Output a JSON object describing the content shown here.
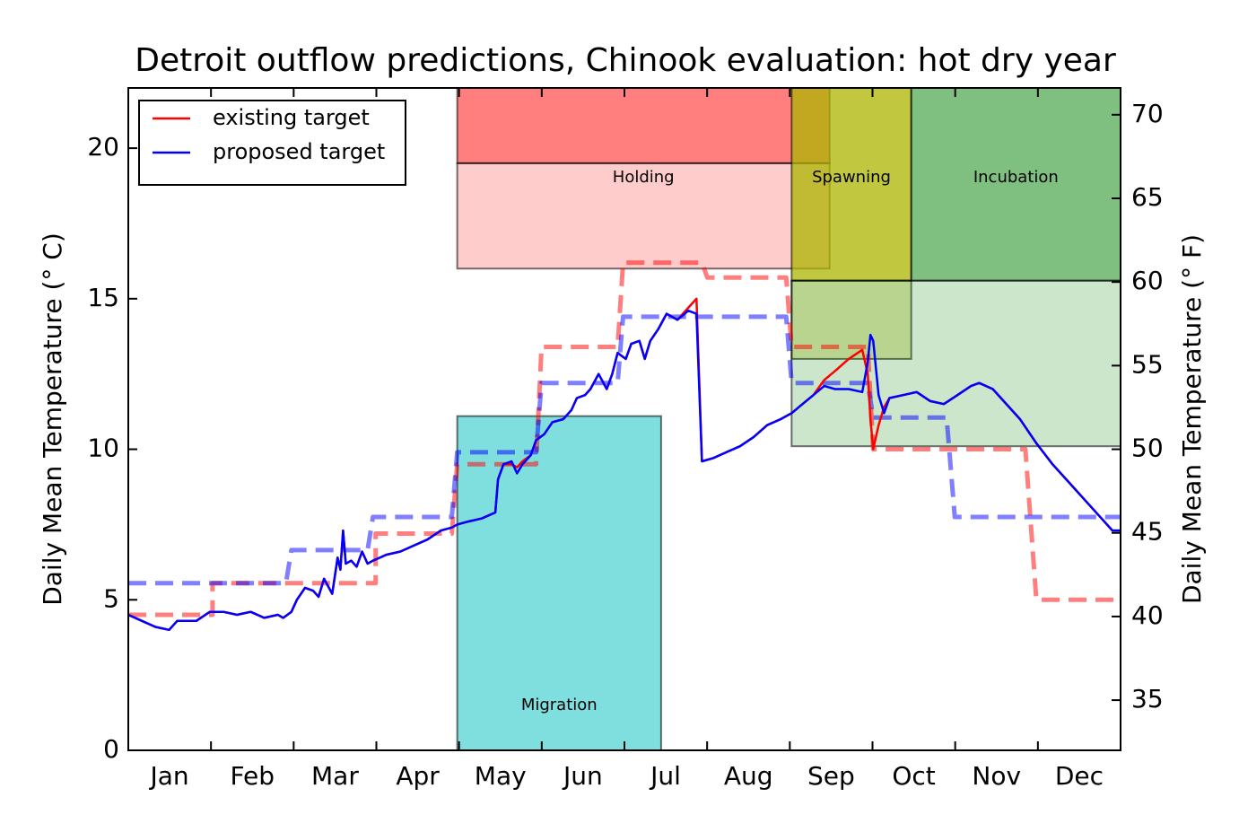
{
  "chart_data": {
    "type": "line",
    "title": "Detroit outflow predictions, Chinook evaluation: hot dry year",
    "ylabel": "Daily Mean Temperature (° C)",
    "y2label": "Daily Mean Temperature (° F)",
    "categories": [
      "Jan",
      "Feb",
      "Mar",
      "Apr",
      "May",
      "Jun",
      "Jul",
      "Aug",
      "Sep",
      "Oct",
      "Nov",
      "Dec"
    ],
    "xlim": [
      0,
      365
    ],
    "ylim": [
      0,
      22
    ],
    "yticks": [
      0,
      5,
      10,
      15,
      20
    ],
    "y2lim": [
      32,
      71.6
    ],
    "y2ticks": [
      35,
      40,
      45,
      50,
      55,
      60,
      65,
      70
    ],
    "legend": "upper left",
    "zones": [
      {
        "label": "Migration",
        "color": "#00c0c0",
        "rects": [
          {
            "x": [
              121,
              196
            ],
            "y": [
              0,
              11.1
            ],
            "opacity": 0.5
          }
        ]
      },
      {
        "label": "Holding",
        "color": "#ff0000",
        "rects": [
          {
            "x": [
              121,
              258
            ],
            "y": [
              19.5,
              22
            ],
            "opacity": 0.5
          },
          {
            "x": [
              121,
              258
            ],
            "y": [
              16,
              19.5
            ],
            "opacity": 0.2
          }
        ]
      },
      {
        "label": "Spawning",
        "color": "#acb500",
        "rects": [
          {
            "x": [
              244,
              288
            ],
            "y": [
              15.6,
              22
            ],
            "opacity": 0.75
          },
          {
            "x": [
              244,
              288
            ],
            "y": [
              13,
              15.6
            ],
            "opacity": 0.3
          }
        ]
      },
      {
        "label": "Incubation",
        "color": "#008000",
        "rects": [
          {
            "x": [
              288,
              365
            ],
            "y": [
              15.6,
              22
            ],
            "opacity": 0.5
          },
          {
            "x": [
              244,
              365
            ],
            "y": [
              10.1,
              15.6
            ],
            "opacity": 0.2
          }
        ]
      }
    ],
    "series": [
      {
        "color": "#ff0000",
        "style": "dashed",
        "opacity": 0.5,
        "x": [
          0,
          31,
          31,
          91,
          91,
          119,
          121,
          150,
          152,
          180,
          182,
          211,
          213,
          242,
          244,
          272,
          274,
          330,
          334,
          365
        ],
        "values": [
          4.5,
          4.5,
          5.55,
          5.55,
          7.2,
          7.2,
          9.5,
          9.5,
          13.4,
          13.4,
          16.2,
          16.2,
          15.7,
          15.7,
          13.4,
          13.4,
          10.0,
          10.0,
          5.0,
          5.0
        ]
      },
      {
        "color": "#0000ff",
        "style": "dashed",
        "opacity": 0.5,
        "x": [
          0,
          58,
          60,
          88,
          90,
          119,
          121,
          150,
          152,
          180,
          182,
          242,
          244,
          272,
          274,
          301,
          304,
          365
        ],
        "values": [
          5.55,
          5.55,
          6.65,
          6.65,
          7.75,
          7.75,
          9.9,
          9.9,
          12.2,
          12.2,
          14.4,
          14.4,
          12.2,
          12.2,
          11.05,
          11.05,
          7.75,
          7.75
        ]
      },
      {
        "name": "existing target",
        "color": "#ff0000",
        "x": [
          0,
          5,
          10,
          15,
          18,
          25,
          30,
          35,
          40,
          45,
          50,
          55,
          57,
          60,
          62,
          65,
          68,
          70,
          72,
          75,
          77,
          78,
          79,
          80,
          82,
          84,
          86,
          88,
          90,
          95,
          100,
          105,
          110,
          115,
          119,
          121,
          125,
          130,
          135,
          136,
          138,
          141,
          143,
          145,
          148,
          150,
          153,
          156,
          160,
          163,
          165,
          168,
          170,
          173,
          176,
          178,
          180,
          183,
          185,
          188,
          190,
          192,
          195,
          198,
          202,
          206,
          209,
          211,
          215,
          220,
          225,
          230,
          235,
          240,
          244,
          248,
          252,
          256,
          260,
          265,
          270,
          272,
          273,
          274,
          276,
          278,
          280,
          285,
          290,
          295,
          300,
          305,
          310,
          313,
          318,
          322,
          328,
          334,
          340,
          346,
          352,
          358,
          362,
          365
        ],
        "values": [
          4.5,
          4.3,
          4.1,
          4.0,
          4.3,
          4.3,
          4.6,
          4.6,
          4.5,
          4.6,
          4.4,
          4.5,
          4.4,
          4.6,
          5.0,
          5.4,
          5.3,
          5.1,
          5.7,
          5.2,
          6.4,
          6.0,
          7.3,
          6.2,
          6.3,
          6.1,
          6.6,
          6.2,
          6.3,
          6.5,
          6.6,
          6.8,
          7.0,
          7.3,
          7.4,
          7.5,
          7.6,
          7.7,
          7.9,
          9.0,
          9.5,
          9.5,
          9.4,
          9.6,
          9.8,
          10.3,
          10.5,
          10.9,
          11.0,
          11.3,
          11.7,
          11.8,
          12.0,
          12.5,
          12.0,
          12.5,
          13.2,
          13.0,
          13.5,
          13.6,
          13.0,
          13.6,
          14.0,
          14.5,
          14.3,
          14.7,
          15.0,
          9.6,
          9.7,
          9.9,
          10.1,
          10.4,
          10.8,
          11.0,
          11.2,
          11.5,
          11.8,
          12.3,
          12.6,
          13.0,
          13.3,
          12.5,
          11.0,
          10.0,
          10.8,
          11.4,
          11.7,
          11.8,
          11.9,
          11.6,
          11.5,
          11.8,
          12.1,
          12.2,
          12.0,
          11.6,
          11.0,
          10.2,
          9.5,
          8.9,
          8.3,
          7.7,
          7.3,
          7.3
        ]
      },
      {
        "name": "proposed target",
        "color": "#0000ff",
        "x": [
          0,
          5,
          10,
          15,
          18,
          25,
          30,
          35,
          40,
          45,
          50,
          55,
          57,
          60,
          62,
          65,
          68,
          70,
          72,
          75,
          77,
          78,
          79,
          80,
          82,
          84,
          86,
          88,
          90,
          95,
          100,
          105,
          110,
          115,
          119,
          121,
          125,
          130,
          135,
          136,
          138,
          141,
          143,
          145,
          148,
          150,
          153,
          156,
          160,
          163,
          165,
          168,
          170,
          173,
          176,
          178,
          180,
          183,
          185,
          188,
          190,
          192,
          195,
          198,
          202,
          206,
          209,
          211,
          215,
          220,
          225,
          230,
          235,
          240,
          244,
          248,
          252,
          256,
          260,
          265,
          270,
          272,
          273,
          274,
          276,
          278,
          280,
          285,
          290,
          295,
          300,
          305,
          310,
          313,
          318,
          322,
          328,
          334,
          340,
          346,
          352,
          358,
          362,
          365
        ],
        "values": [
          4.5,
          4.3,
          4.1,
          4.0,
          4.3,
          4.3,
          4.6,
          4.6,
          4.5,
          4.6,
          4.4,
          4.5,
          4.4,
          4.6,
          5.0,
          5.4,
          5.3,
          5.1,
          5.7,
          5.2,
          6.4,
          6.0,
          7.3,
          6.2,
          6.3,
          6.1,
          6.6,
          6.2,
          6.3,
          6.5,
          6.6,
          6.8,
          7.0,
          7.3,
          7.4,
          7.5,
          7.6,
          7.7,
          7.9,
          9.0,
          9.5,
          9.6,
          9.2,
          9.5,
          9.8,
          10.3,
          10.5,
          10.9,
          11.0,
          11.3,
          11.7,
          11.8,
          12.0,
          12.5,
          12.0,
          12.5,
          13.2,
          13.0,
          13.5,
          13.6,
          13.0,
          13.6,
          14.0,
          14.5,
          14.3,
          14.6,
          14.5,
          9.6,
          9.7,
          9.9,
          10.1,
          10.4,
          10.8,
          11.0,
          11.2,
          11.5,
          11.8,
          12.1,
          12.0,
          12.0,
          11.9,
          12.9,
          13.8,
          13.6,
          11.8,
          11.2,
          11.7,
          11.8,
          11.9,
          11.6,
          11.5,
          11.8,
          12.1,
          12.2,
          12.0,
          11.6,
          11.0,
          10.2,
          9.5,
          8.9,
          8.3,
          7.7,
          7.3,
          7.3
        ]
      }
    ]
  }
}
